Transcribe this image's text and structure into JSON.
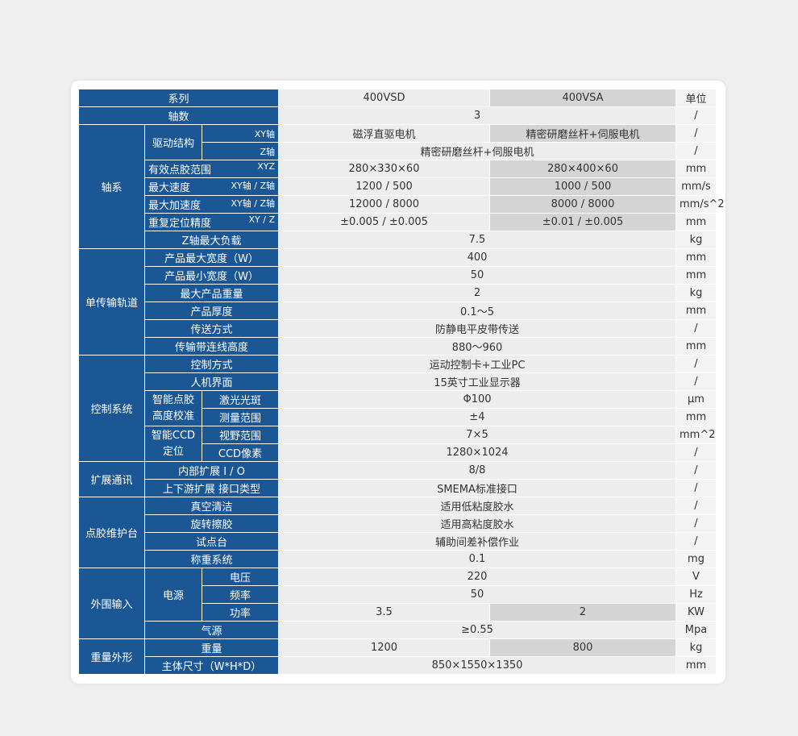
{
  "header": {
    "series": "系列",
    "models": [
      "400VSD",
      "400VSA"
    ],
    "unit": "单位"
  },
  "rows": [
    {
      "label": "轴数",
      "values": [
        "3"
      ],
      "unit": "/"
    },
    {
      "group": "轴系",
      "sub": "驱动结构",
      "label": "XY轴",
      "values": [
        "磁浮直驱电机",
        "精密研磨丝杆+伺服电机"
      ],
      "unit": "/"
    },
    {
      "label": "Z轴",
      "values": [
        "精密研磨丝杆+伺服电机"
      ],
      "unit": "/"
    },
    {
      "label": "有效点胶范围",
      "qualifier": "XYZ",
      "values": [
        "280×330×60",
        "280×400×60"
      ],
      "unit": "mm"
    },
    {
      "label": "最大速度",
      "qualifier": "XY轴 / Z轴",
      "values": [
        "1200 / 500",
        "1000 / 500"
      ],
      "unit": "mm/s"
    },
    {
      "label": "最大加速度",
      "qualifier": "XY轴 / Z轴",
      "values": [
        "12000 / 8000",
        "8000 / 8000"
      ],
      "unit": "mm/s^2"
    },
    {
      "label": "重复定位精度",
      "qualifier": "XY / Z",
      "values": [
        "±0.005 / ±0.005",
        "±0.01 / ±0.005"
      ],
      "unit": "mm"
    },
    {
      "label": "Z轴最大负载",
      "values": [
        "7.5"
      ],
      "unit": "kg"
    },
    {
      "group": "单传输轨道",
      "label": "产品最大宽度（W）",
      "values": [
        "400"
      ],
      "unit": "mm"
    },
    {
      "label": "产品最小宽度（W）",
      "values": [
        "50"
      ],
      "unit": "mm"
    },
    {
      "label": "最大产品重量",
      "values": [
        "2"
      ],
      "unit": "kg"
    },
    {
      "label": "产品厚度",
      "values": [
        "0.1～5"
      ],
      "unit": "mm"
    },
    {
      "label": "传送方式",
      "values": [
        "防静电平皮带传送"
      ],
      "unit": "/"
    },
    {
      "label": "传输带连线高度",
      "values": [
        "880～960"
      ],
      "unit": "mm"
    },
    {
      "group": "控制系统",
      "label": "控制方式",
      "values": [
        "运动控制卡+工业PC"
      ],
      "unit": "/"
    },
    {
      "label": "人机界面",
      "values": [
        "15英寸工业显示器"
      ],
      "unit": "/"
    },
    {
      "sub": "智能点胶高度校准",
      "label": "激光光斑",
      "values": [
        "Φ100"
      ],
      "unit": "μm"
    },
    {
      "label": "测量范围",
      "values": [
        "±4"
      ],
      "unit": "mm"
    },
    {
      "sub": "智能CCD定位",
      "label": "视野范围",
      "values": [
        "7×5"
      ],
      "unit": "mm^2"
    },
    {
      "label": "CCD像素",
      "values": [
        "1280×1024"
      ],
      "unit": "/"
    },
    {
      "group": "扩展通讯",
      "label": "内部扩展 I / O",
      "values": [
        "8/8"
      ],
      "unit": "/"
    },
    {
      "label": "上下游扩展 接口类型",
      "values": [
        "SMEMA标准接口"
      ],
      "unit": "/"
    },
    {
      "group": "点胶维护台",
      "label": "真空清洁",
      "values": [
        "适用低粘度胶水"
      ],
      "unit": "/"
    },
    {
      "label": "旋转擦胶",
      "values": [
        "适用高粘度胶水"
      ],
      "unit": "/"
    },
    {
      "label": "试点台",
      "values": [
        "辅助间差补偿作业"
      ],
      "unit": "/"
    },
    {
      "label": "称重系统",
      "values": [
        "0.1"
      ],
      "unit": "mg"
    },
    {
      "group": "外围输入",
      "sub": "电源",
      "label": "电压",
      "values": [
        "220"
      ],
      "unit": "V"
    },
    {
      "label": "频率",
      "values": [
        "50"
      ],
      "unit": "Hz"
    },
    {
      "label": "功率",
      "values": [
        "3.5",
        "2"
      ],
      "unit": "KW"
    },
    {
      "label": "气源",
      "values": [
        "≥0.55"
      ],
      "unit": "Mpa"
    },
    {
      "group": "重量外形",
      "label": "重量",
      "values": [
        "1200",
        "800"
      ],
      "unit": "kg"
    },
    {
      "label": "主体尺寸（W*H*D）",
      "values": [
        "850×1550×1350"
      ],
      "unit": "mm"
    }
  ]
}
